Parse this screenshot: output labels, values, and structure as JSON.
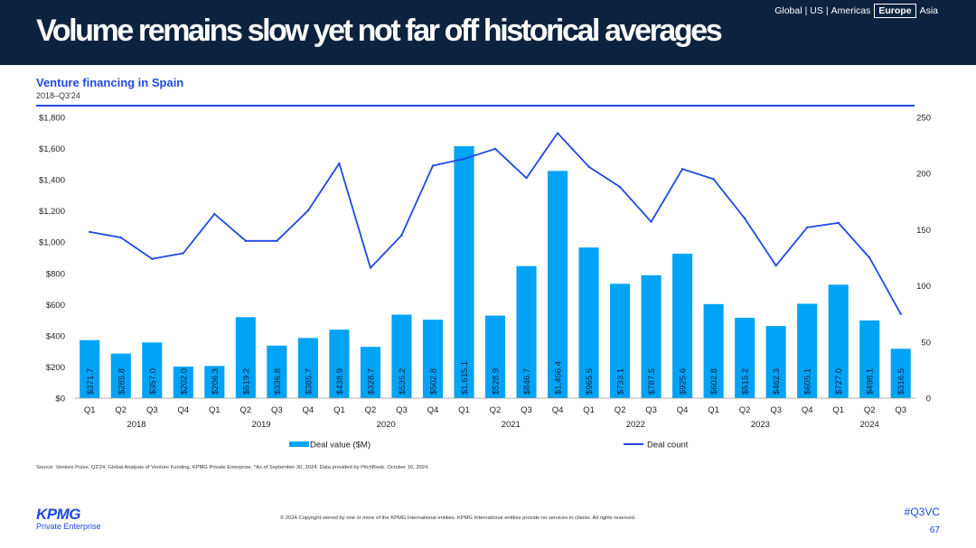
{
  "header": {
    "title": "Volume remains slow yet not far off historical averages",
    "regions": [
      "Global",
      "US",
      "Americas",
      "Europe",
      "Asia"
    ],
    "active_region": "Europe",
    "separator": "|"
  },
  "chart_title": "Venture financing in Spain",
  "chart_subtitle": "2018–Q3'24",
  "chart_data": {
    "type": "bar",
    "categories": [
      "Q1",
      "Q2",
      "Q3",
      "Q4",
      "Q1",
      "Q2",
      "Q3",
      "Q4",
      "Q1",
      "Q2",
      "Q3",
      "Q4",
      "Q1",
      "Q2",
      "Q3",
      "Q4",
      "Q1",
      "Q2",
      "Q3",
      "Q4",
      "Q1",
      "Q2",
      "Q3",
      "Q4",
      "Q1",
      "Q2",
      "Q3"
    ],
    "year_groups": [
      {
        "label": "2018",
        "start": 0,
        "end": 3
      },
      {
        "label": "2019",
        "start": 4,
        "end": 7
      },
      {
        "label": "2020",
        "start": 8,
        "end": 11
      },
      {
        "label": "2021",
        "start": 12,
        "end": 15
      },
      {
        "label": "2022",
        "start": 16,
        "end": 19
      },
      {
        "label": "2023",
        "start": 20,
        "end": 23
      },
      {
        "label": "2024",
        "start": 24,
        "end": 26
      }
    ],
    "series": [
      {
        "name": "Deal value ($M)",
        "type": "bar",
        "axis": "left",
        "color": "#00a3f5",
        "values": [
          371.7,
          285.8,
          357.0,
          202.0,
          206.3,
          519.2,
          336.8,
          385.7,
          438.9,
          328.7,
          535.2,
          502.8,
          1615.1,
          528.9,
          846.7,
          1456.4,
          965.5,
          733.1,
          787.5,
          925.6,
          602.8,
          515.2,
          462.3,
          605.1,
          727.0,
          498.1,
          316.5
        ],
        "labels": [
          "$371.7",
          "$285.8",
          "$357.0",
          "$202.0",
          "$206.3",
          "$519.2",
          "$336.8",
          "$385.7",
          "$438.9",
          "$328.7",
          "$535.2",
          "$502.8",
          "$1,615.1",
          "$528.9",
          "$846.7",
          "$1,456.4",
          "$965.5",
          "$733.1",
          "$787.5",
          "$925.6",
          "$602.8",
          "$515.2",
          "$462.3",
          "$605.1",
          "$727.0",
          "$498.1",
          "$316.5"
        ]
      },
      {
        "name": "Deal count",
        "type": "line",
        "axis": "right",
        "color": "#1e49e2",
        "values": [
          148,
          143,
          124,
          129,
          164,
          140,
          140,
          167,
          209,
          116,
          145,
          207,
          213,
          222,
          196,
          236,
          206,
          188,
          157,
          204,
          195,
          160,
          118,
          152,
          156,
          125,
          75
        ]
      }
    ],
    "y_left": {
      "min": 0,
      "max": 1800,
      "ticks": [
        0,
        200,
        400,
        600,
        800,
        1000,
        1200,
        1400,
        1600,
        1800
      ],
      "tick_labels": [
        "$0",
        "$200",
        "$400",
        "$600",
        "$800",
        "$1,000",
        "$1,200",
        "$1,400",
        "$1,600",
        "$1,800"
      ]
    },
    "y_right": {
      "min": 0,
      "max": 250,
      "ticks": [
        0,
        50,
        100,
        150,
        200,
        250
      ],
      "tick_labels": [
        "0",
        "50",
        "100",
        "150",
        "200",
        "250"
      ]
    },
    "legend_position": "bottom"
  },
  "source": "Source: Venture Pulse, Q3'24, Global Analysis of Venture Funding, KPMG Private Enterprise. *As of September 30, 2024. Data provided by PitchBook, October 16, 2024.",
  "copyright": "© 2024 Copyright owned by one or more of the KPMG International entities. KPMG International entities provide no services to clients. All rights reserved.",
  "logo": {
    "mark": "KPMG",
    "sub": "Private Enterprise"
  },
  "hashtag": "#Q3VC",
  "page_number": "67",
  "colors": {
    "header_bg": "#0c2340",
    "accent": "#1e49e2",
    "bar": "#00a3f5"
  }
}
